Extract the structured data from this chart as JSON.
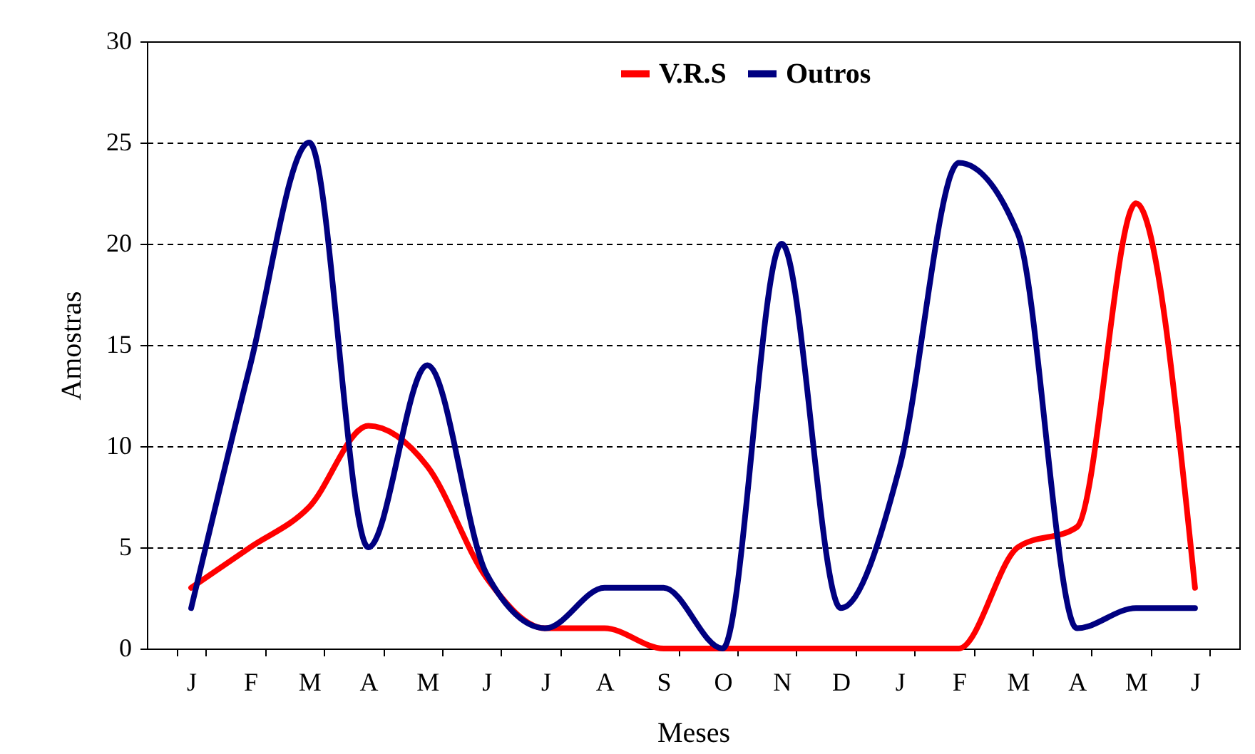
{
  "chart_data": {
    "type": "line",
    "xlabel": "Meses",
    "ylabel": "Amostras",
    "categories": [
      "J",
      "F",
      "M",
      "A",
      "M",
      "J",
      "J",
      "A",
      "S",
      "O",
      "N",
      "D",
      "J",
      "F",
      "M",
      "A",
      "M",
      "J"
    ],
    "series": [
      {
        "name": "V.R.S",
        "color": "#ff0000",
        "values": [
          3,
          5,
          7,
          11,
          9,
          3.5,
          1,
          1,
          0,
          0,
          0,
          0,
          0,
          0,
          5,
          6,
          22,
          3
        ]
      },
      {
        "name": "Outros",
        "color": "#000080",
        "values": [
          2,
          14,
          25,
          5,
          14,
          3.7,
          1,
          3,
          3,
          0,
          20,
          2,
          9,
          24,
          20.5,
          1,
          2,
          2
        ]
      }
    ],
    "ylim": [
      0,
      30
    ],
    "yticks": [
      0,
      5,
      10,
      15,
      20,
      25,
      30
    ],
    "grid": "y",
    "legend": "top",
    "marker": "none",
    "line_style": "solid"
  }
}
